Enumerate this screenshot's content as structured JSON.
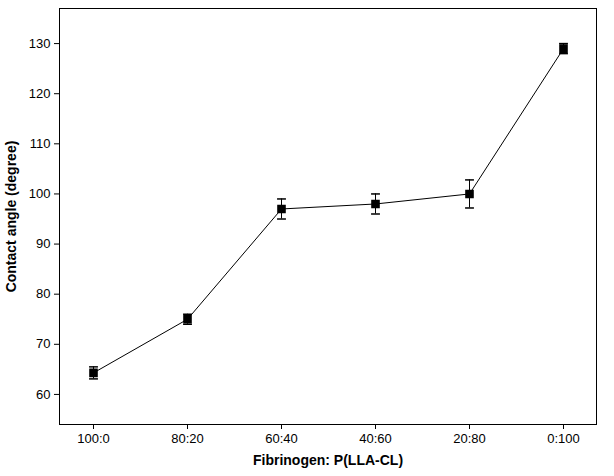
{
  "chart_data": {
    "type": "line",
    "x_label": "Fibrinogen: P(LLA-CL)",
    "y_label": "Contact angle (degree)",
    "categories": [
      "100:0",
      "80:20",
      "60:40",
      "40:60",
      "20:80",
      "0:100"
    ],
    "values": [
      64.3,
      75,
      97,
      98,
      100,
      129
    ],
    "errors": [
      1.2,
      1.0,
      2.0,
      2.0,
      2.8,
      1.0
    ],
    "color": "#000000",
    "marker": "square",
    "ylim": [
      54,
      137
    ],
    "yticks": [
      60,
      70,
      80,
      90,
      100,
      110,
      120,
      130
    ],
    "grid": false
  }
}
